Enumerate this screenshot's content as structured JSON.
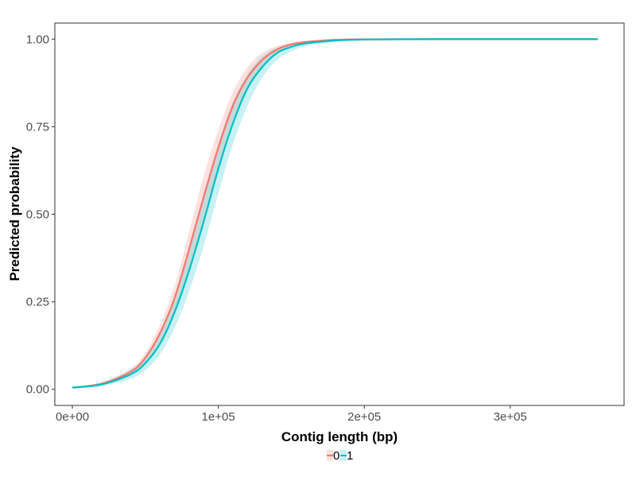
{
  "chart_data": {
    "type": "line",
    "xlabel": "Contig length (bp)",
    "ylabel": "Predicted probability",
    "xlim": [
      -12000,
      378000
    ],
    "ylim": [
      -0.046,
      1.046
    ],
    "x_ticks": [
      0,
      100000,
      200000,
      300000
    ],
    "x_tick_labels": [
      "0e+00",
      "1e+05",
      "2e+05",
      "3e+05"
    ],
    "y_ticks": [
      0,
      0.25,
      0.5,
      0.75,
      1.0
    ],
    "y_tick_labels": [
      "0.00",
      "0.25",
      "0.50",
      "0.75",
      "1.00"
    ],
    "grid": false,
    "legend_position": "bottom",
    "x": [
      0,
      20000,
      40000,
      50000,
      60000,
      70000,
      80000,
      90000,
      100000,
      110000,
      120000,
      130000,
      140000,
      150000,
      160000,
      180000,
      200000,
      250000,
      300000,
      360000
    ],
    "series": [
      {
        "name": "0",
        "color": "#F8766D",
        "values": [
          0.005,
          0.016,
          0.05,
          0.09,
          0.16,
          0.26,
          0.4,
          0.55,
          0.69,
          0.81,
          0.89,
          0.94,
          0.97,
          0.985,
          0.992,
          0.998,
          0.9995,
          1.0,
          1.0,
          1.0
        ],
        "lower": [
          0.003,
          0.012,
          0.04,
          0.075,
          0.135,
          0.225,
          0.35,
          0.49,
          0.64,
          0.77,
          0.86,
          0.92,
          0.96,
          0.978,
          0.988,
          0.996,
          0.999,
          1.0,
          1.0,
          1.0
        ],
        "upper": [
          0.007,
          0.02,
          0.06,
          0.105,
          0.185,
          0.295,
          0.45,
          0.61,
          0.74,
          0.85,
          0.92,
          0.96,
          0.98,
          0.99,
          0.996,
          0.999,
          1.0,
          1.0,
          1.0,
          1.0
        ]
      },
      {
        "name": "1",
        "color": "#00BFC4",
        "values": [
          0.005,
          0.014,
          0.043,
          0.075,
          0.13,
          0.22,
          0.34,
          0.48,
          0.63,
          0.76,
          0.86,
          0.92,
          0.96,
          0.978,
          0.988,
          0.996,
          0.999,
          1.0,
          1.0,
          1.0
        ],
        "lower": [
          0.003,
          0.009,
          0.03,
          0.055,
          0.1,
          0.175,
          0.28,
          0.41,
          0.56,
          0.7,
          0.81,
          0.89,
          0.94,
          0.965,
          0.98,
          0.993,
          0.998,
          1.0,
          1.0,
          1.0
        ],
        "upper": [
          0.007,
          0.019,
          0.056,
          0.095,
          0.16,
          0.265,
          0.4,
          0.55,
          0.7,
          0.82,
          0.9,
          0.95,
          0.975,
          0.988,
          0.994,
          0.998,
          1.0,
          1.0,
          1.0,
          1.0
        ]
      }
    ]
  }
}
